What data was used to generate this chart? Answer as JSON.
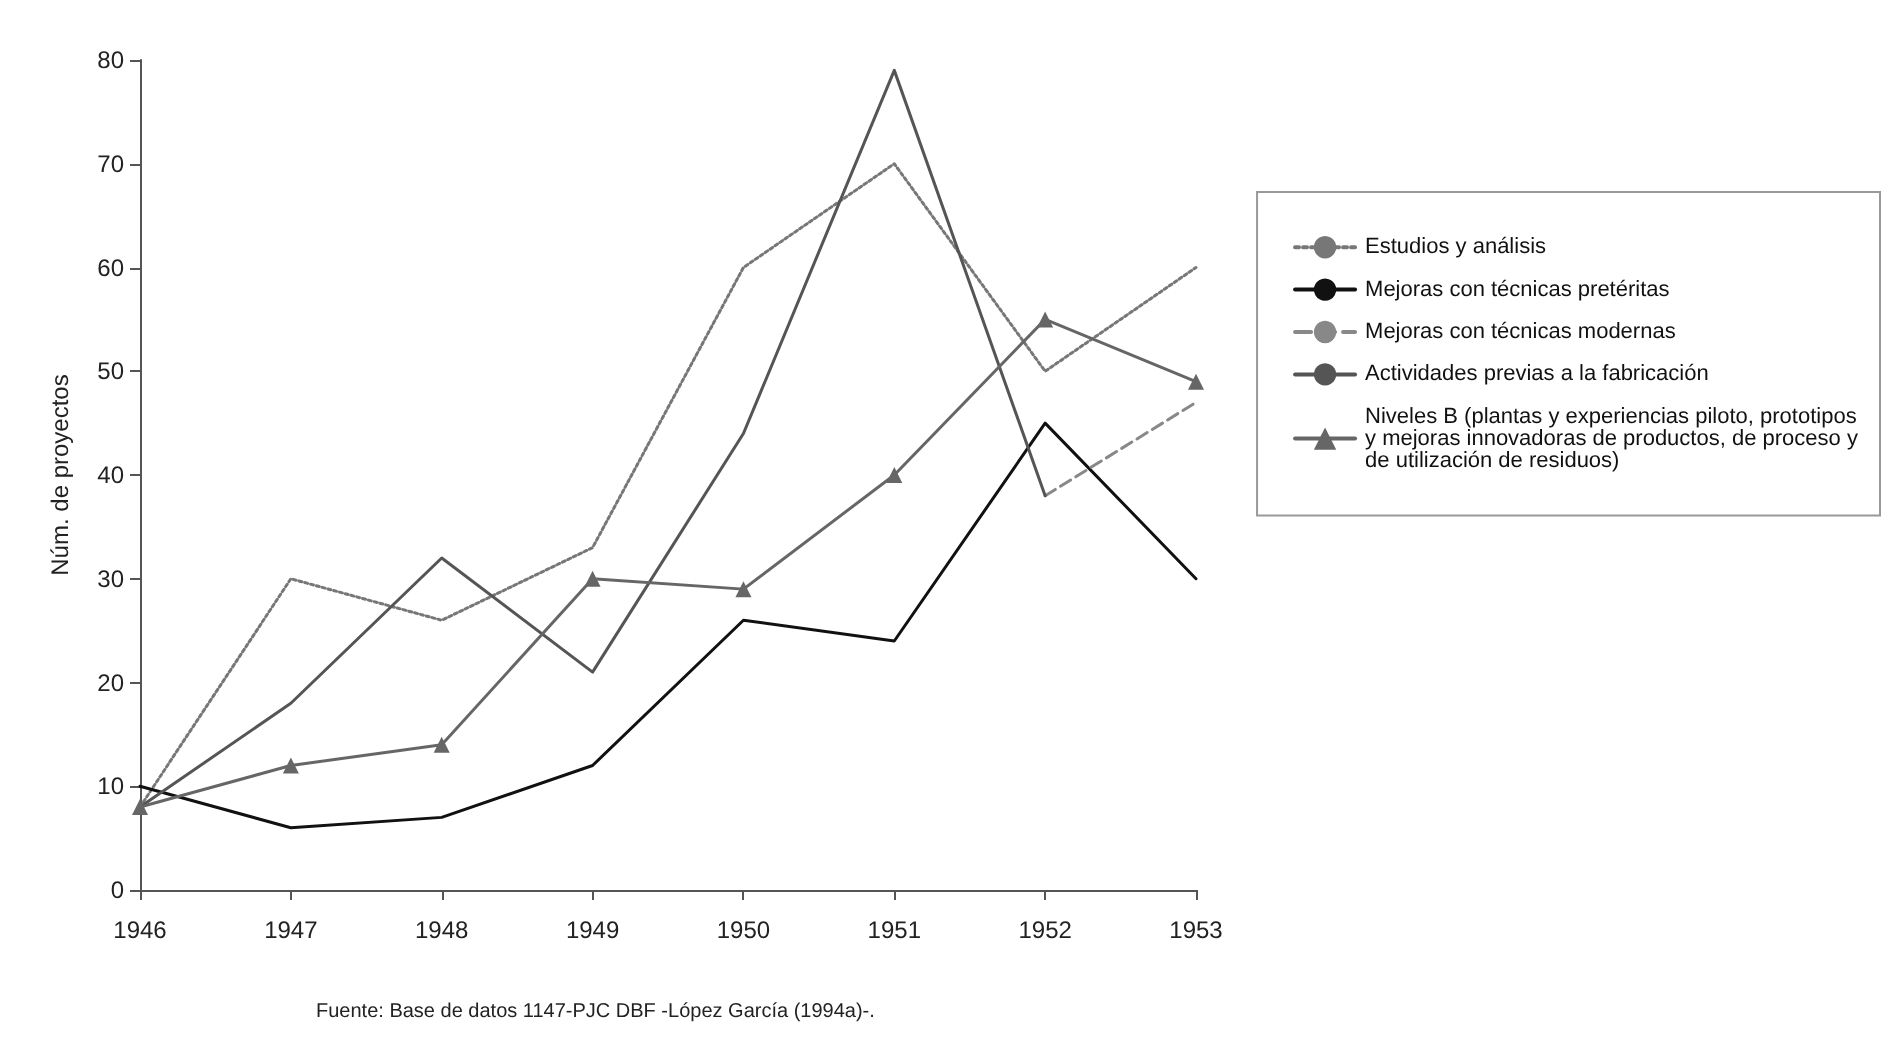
{
  "chart_data": {
    "type": "line",
    "ylabel": "Núm. de proyectos",
    "categories": [
      "1946",
      "1947",
      "1948",
      "1949",
      "1950",
      "1951",
      "1952",
      "1953"
    ],
    "series": [
      {
        "name": "Estudios y análisis",
        "color": "#777777",
        "line_style": "dotted",
        "marker": "none",
        "values": [
          8,
          30,
          26,
          33,
          60,
          70,
          50,
          60
        ]
      },
      {
        "name": "Mejoras con técnicas pretéritas",
        "color": "#111111",
        "line_style": "solid",
        "marker": "none",
        "values": [
          10,
          6,
          7,
          12,
          26,
          24,
          45,
          30
        ]
      },
      {
        "name": "Mejoras con técnicas modernas",
        "color": "#888888",
        "line_style": "dashed",
        "marker": "none",
        "values": [
          null,
          null,
          null,
          null,
          null,
          null,
          38,
          47
        ]
      },
      {
        "name": "Actividades previas a la fabricación",
        "color": "#555555",
        "line_style": "solid",
        "marker": "none",
        "values": [
          8,
          18,
          32,
          21,
          44,
          79,
          38,
          null
        ]
      },
      {
        "name": "Niveles B (plantas y experiencias piloto, prototipos y mejoras innovadoras de productos, de proceso y de utilización de residuos)",
        "color": "#666666",
        "line_style": "solid",
        "marker": "triangle",
        "values": [
          8,
          12,
          14,
          30,
          29,
          40,
          55,
          49
        ]
      }
    ],
    "ylim": [
      0,
      80
    ],
    "yticks": [
      0,
      10,
      20,
      30,
      40,
      50,
      60,
      70,
      80
    ],
    "grid": false,
    "legend": "right",
    "annotations": [
      "Fuente: Base de datos 1147-PJC DBF -López García (1994a)-."
    ]
  }
}
